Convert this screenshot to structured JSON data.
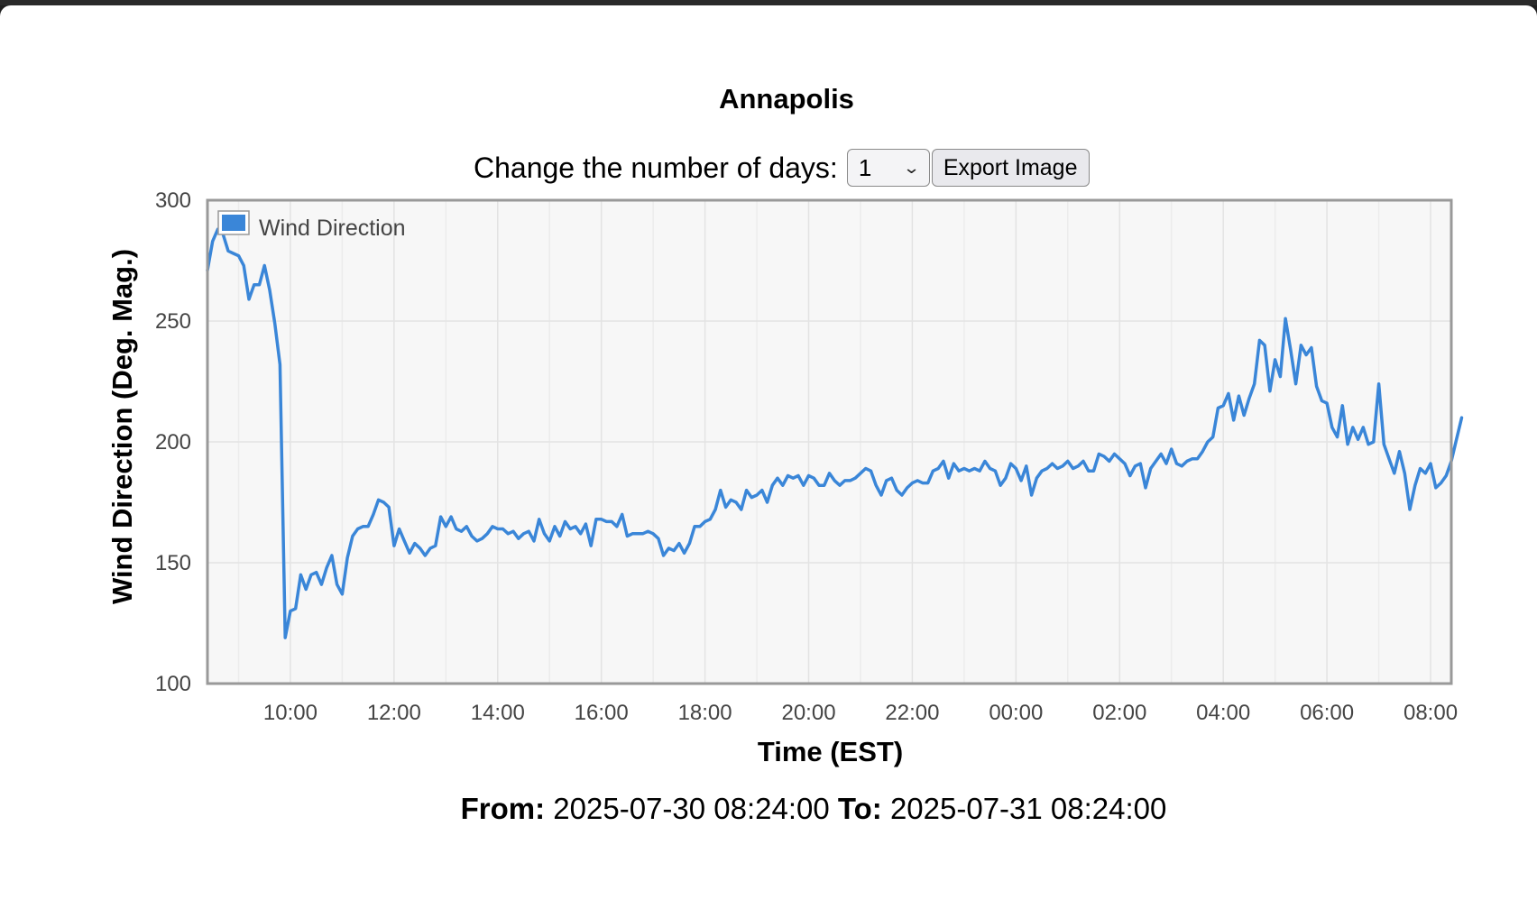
{
  "chart_title": "Annapolis",
  "controls": {
    "days_label": "Change the number of days:",
    "days_value": "1",
    "export_label": "Export Image"
  },
  "footer": {
    "from_label": "From:",
    "from_value": "2025-07-30 08:24:00",
    "to_label": "To:",
    "to_value": "2025-07-31 08:24:00"
  },
  "colors": {
    "series": "#3a86d8",
    "plot_bg": "#f7f7f7",
    "axis": "#999999"
  },
  "chart_data": {
    "type": "line",
    "title": "Annapolis",
    "xlabel": "Time (EST)",
    "ylabel": "Wind Direction (Deg. Mag.)",
    "ylim": [
      100,
      300
    ],
    "yticks": [
      100,
      150,
      200,
      250,
      300
    ],
    "xlim": [
      "2025-07-30 08:24",
      "2025-07-31 08:24"
    ],
    "xticks": [
      "10:00",
      "12:00",
      "14:00",
      "16:00",
      "18:00",
      "20:00",
      "22:00",
      "00:00",
      "02:00",
      "04:00",
      "06:00",
      "08:00"
    ],
    "legend": "top-left",
    "grid": true,
    "series": [
      {
        "name": "Wind Direction",
        "x_start": "2025-07-30 08:24",
        "interval_minutes": 6,
        "values": [
          271,
          283,
          288,
          286,
          279,
          278,
          277,
          273,
          259,
          265,
          265,
          273,
          263,
          249,
          232,
          119,
          130,
          131,
          145,
          139,
          145,
          146,
          141,
          148,
          153,
          141,
          137,
          152,
          161,
          164,
          165,
          165,
          170,
          176,
          175,
          173,
          157,
          164,
          159,
          154,
          158,
          156,
          153,
          156,
          157,
          169,
          165,
          169,
          164,
          163,
          165,
          161,
          159,
          160,
          162,
          165,
          164,
          164,
          162,
          163,
          160,
          162,
          163,
          159,
          168,
          162,
          159,
          165,
          161,
          167,
          164,
          165,
          162,
          166,
          157,
          168,
          168,
          167,
          167,
          165,
          170,
          161,
          162,
          162,
          162,
          163,
          162,
          160,
          153,
          156,
          155,
          158,
          154,
          158,
          165,
          165,
          167,
          168,
          172,
          180,
          173,
          176,
          175,
          172,
          180,
          177,
          178,
          180,
          175,
          182,
          185,
          182,
          186,
          185,
          186,
          182,
          186,
          185,
          182,
          182,
          187,
          184,
          182,
          184,
          184,
          185,
          187,
          189,
          188,
          182,
          178,
          184,
          185,
          180,
          178,
          181,
          183,
          184,
          183,
          183,
          188,
          189,
          192,
          185,
          191,
          188,
          189,
          188,
          189,
          188,
          192,
          189,
          188,
          182,
          185,
          191,
          189,
          184,
          190,
          178,
          185,
          188,
          189,
          191,
          189,
          190,
          192,
          189,
          190,
          192,
          188,
          188,
          195,
          194,
          192,
          195,
          193,
          191,
          186,
          190,
          191,
          181,
          189,
          192,
          195,
          191,
          197,
          191,
          190,
          192,
          193,
          193,
          196,
          200,
          202,
          214,
          215,
          220,
          209,
          219,
          211,
          218,
          224,
          242,
          240,
          221,
          234,
          227,
          251,
          238,
          224,
          240,
          236,
          239,
          223,
          217,
          216,
          206,
          202,
          215,
          199,
          206,
          201,
          206,
          199,
          200,
          224,
          199,
          193,
          187,
          196,
          187,
          172,
          182,
          189,
          187,
          191,
          181,
          183,
          186,
          192,
          201,
          210
        ]
      }
    ]
  }
}
